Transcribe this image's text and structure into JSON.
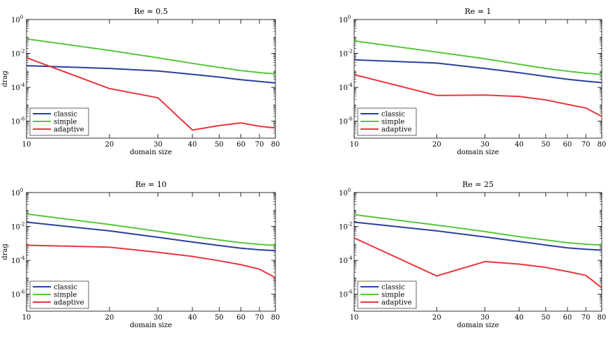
{
  "chart_data": [
    {
      "type": "line",
      "title": "Re = 0.5",
      "xlabel": "domain size",
      "ylabel": "drag",
      "x_scale": "log",
      "y_scale": "log",
      "xlim": [
        10,
        80
      ],
      "ylim": [
        1e-07,
        1
      ],
      "x_ticks": [
        10,
        20,
        30,
        40,
        50,
        60,
        70,
        80
      ],
      "x_tick_labels": [
        "10",
        "20",
        "30",
        "40",
        "50",
        "60",
        "70",
        "80"
      ],
      "y_ticks": [
        1e-06,
        0.0001,
        0.01,
        1
      ],
      "y_tick_bases": [
        "10",
        "10",
        "10",
        "10"
      ],
      "y_tick_exponents": [
        "-6",
        "-4",
        "-2",
        "0"
      ],
      "legend_position": "bottom-left",
      "x": [
        10,
        20,
        30,
        40,
        50,
        60,
        70,
        80
      ],
      "series": [
        {
          "name": "classic",
          "color": "#2b3fa0",
          "values": [
            0.0019,
            0.0013,
            0.00092,
            0.00058,
            0.0004,
            0.00028,
            0.00022,
            0.00018
          ]
        },
        {
          "name": "simple",
          "color": "#56c83a",
          "values": [
            0.072,
            0.015,
            0.0055,
            0.0026,
            0.0015,
            0.00098,
            0.00074,
            0.00062
          ]
        },
        {
          "name": "adaptive",
          "color": "#e8363c",
          "values": [
            0.0056,
            8.5e-05,
            2.4e-05,
            3e-07,
            5.5e-07,
            8e-07,
            5e-07,
            4e-07
          ]
        }
      ]
    },
    {
      "type": "line",
      "title": "Re = 1",
      "xlabel": "domain size",
      "ylabel": "",
      "x_scale": "log",
      "y_scale": "log",
      "xlim": [
        10,
        80
      ],
      "ylim": [
        1e-07,
        1
      ],
      "x_ticks": [
        10,
        20,
        30,
        40,
        50,
        60,
        70,
        80
      ],
      "x_tick_labels": [
        "10",
        "20",
        "30",
        "40",
        "50",
        "60",
        "70",
        "80"
      ],
      "y_ticks": [
        1e-06,
        0.0001,
        0.01,
        1
      ],
      "y_tick_bases": [
        "10",
        "10",
        "10",
        "10"
      ],
      "y_tick_exponents": [
        "-6",
        "-4",
        "-2",
        "0"
      ],
      "legend_position": "bottom-left",
      "x": [
        10,
        20,
        30,
        40,
        50,
        60,
        70,
        80
      ],
      "series": [
        {
          "name": "classic",
          "color": "#2b3fa0",
          "values": [
            0.0042,
            0.0027,
            0.0013,
            0.00072,
            0.00044,
            0.0003,
            0.00023,
            0.00019
          ]
        },
        {
          "name": "simple",
          "color": "#56c83a",
          "values": [
            0.055,
            0.012,
            0.0048,
            0.0023,
            0.0013,
            0.0009,
            0.00068,
            0.00058
          ]
        },
        {
          "name": "adaptive",
          "color": "#e8363c",
          "values": [
            0.00056,
            3.3e-05,
            3.5e-05,
            2.9e-05,
            1.8e-05,
            9.8e-06,
            6e-06,
            1.9e-06
          ]
        }
      ]
    },
    {
      "type": "line",
      "title": "Re = 10",
      "xlabel": "domain size",
      "ylabel": "drag",
      "x_scale": "log",
      "y_scale": "log",
      "xlim": [
        10,
        80
      ],
      "ylim": [
        1e-07,
        1
      ],
      "x_ticks": [
        10,
        20,
        30,
        40,
        50,
        60,
        70,
        80
      ],
      "x_tick_labels": [
        "10",
        "20",
        "30",
        "40",
        "50",
        "60",
        "70",
        "80"
      ],
      "y_ticks": [
        1e-06,
        0.0001,
        0.01,
        1
      ],
      "y_tick_bases": [
        "10",
        "10",
        "10",
        "10"
      ],
      "y_tick_exponents": [
        "-6",
        "-4",
        "-2",
        "0"
      ],
      "legend_position": "bottom-left",
      "x": [
        10,
        20,
        30,
        40,
        50,
        60,
        70,
        80
      ],
      "series": [
        {
          "name": "classic",
          "color": "#2b3fa0",
          "values": [
            0.018,
            0.0055,
            0.0023,
            0.0012,
            0.00075,
            0.00052,
            0.00042,
            0.00037
          ]
        },
        {
          "name": "simple",
          "color": "#56c83a",
          "values": [
            0.055,
            0.013,
            0.0052,
            0.0026,
            0.0016,
            0.0011,
            0.00088,
            0.00076
          ]
        },
        {
          "name": "adaptive",
          "color": "#e8363c",
          "values": [
            0.00078,
            0.0006,
            0.0003,
            0.00017,
            9.5e-05,
            5.5e-05,
            3e-05,
            9.5e-06
          ]
        }
      ]
    },
    {
      "type": "line",
      "title": "Re = 25",
      "xlabel": "domain size",
      "ylabel": "",
      "x_scale": "log",
      "y_scale": "log",
      "xlim": [
        10,
        80
      ],
      "ylim": [
        1e-07,
        1
      ],
      "x_ticks": [
        10,
        20,
        30,
        40,
        50,
        60,
        70,
        80
      ],
      "x_tick_labels": [
        "10",
        "20",
        "30",
        "40",
        "50",
        "60",
        "70",
        "80"
      ],
      "y_ticks": [
        1e-06,
        0.0001,
        0.01,
        1
      ],
      "y_tick_bases": [
        "10",
        "10",
        "10",
        "10"
      ],
      "y_tick_exponents": [
        "-6",
        "-4",
        "-2",
        "0"
      ],
      "legend_position": "bottom-left",
      "x": [
        10,
        20,
        30,
        40,
        50,
        60,
        70,
        80
      ],
      "series": [
        {
          "name": "classic",
          "color": "#2b3fa0",
          "values": [
            0.018,
            0.0055,
            0.0024,
            0.0013,
            0.0008,
            0.00055,
            0.00045,
            0.0004
          ]
        },
        {
          "name": "simple",
          "color": "#56c83a",
          "values": [
            0.05,
            0.012,
            0.005,
            0.0025,
            0.0016,
            0.0011,
            0.0009,
            0.0008
          ]
        },
        {
          "name": "adaptive",
          "color": "#e8363c",
          "values": [
            0.0021,
            1.2e-05,
            8.5e-05,
            6e-05,
            3.8e-05,
            2.2e-05,
            1.3e-05,
            2.4e-06
          ]
        }
      ]
    }
  ]
}
